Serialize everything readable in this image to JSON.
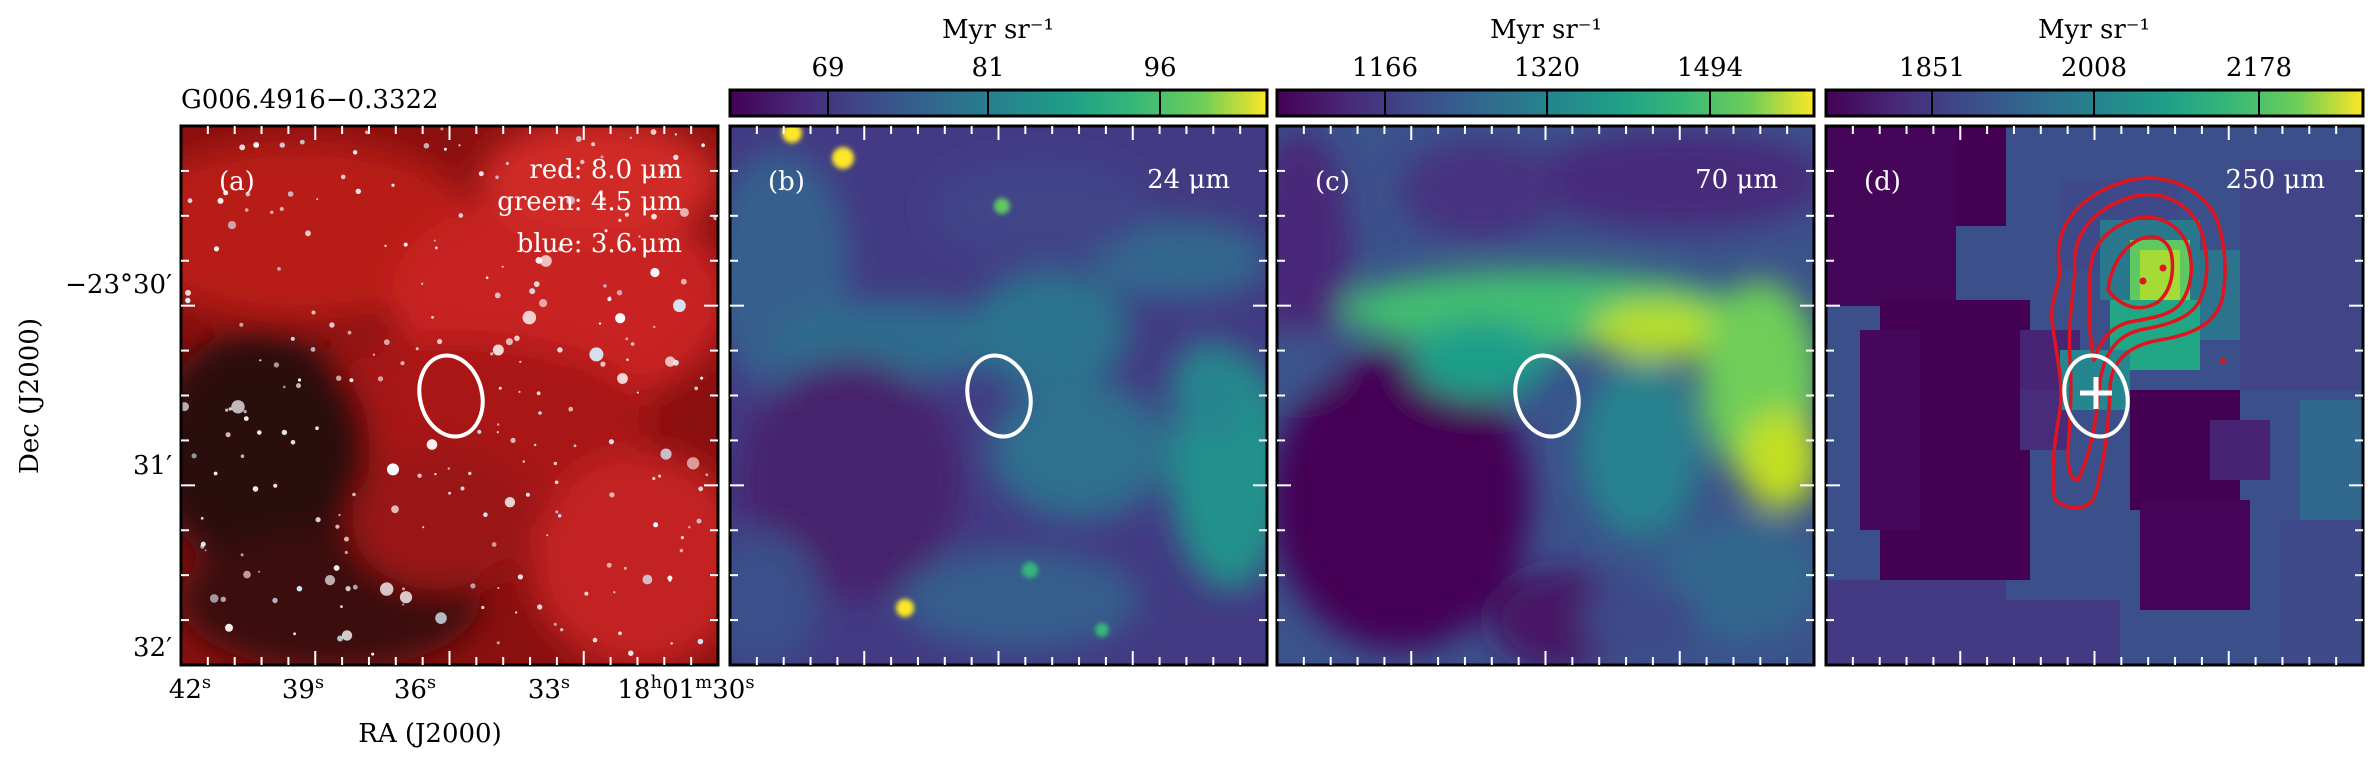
{
  "figure": {
    "source_name": "G006.4916−0.3322",
    "y_axis_label": "Dec (J2000)",
    "x_axis_label": "RA (J2000)",
    "dec_ticks": [
      "−23°30′",
      "31′",
      "32′"
    ],
    "ra_ticks": [
      {
        "label": "42",
        "sup": "s"
      },
      {
        "label": "39",
        "sup": "s"
      },
      {
        "label": "36",
        "sup": "s"
      },
      {
        "label": "33",
        "sup": "s"
      },
      {
        "label": "18h01m30s"
      }
    ],
    "colors": {
      "frame": "#000000",
      "ellipse": "#ffffff",
      "contour": "#e0141e",
      "cross": "#ffffff"
    }
  },
  "panels": [
    {
      "id": "a",
      "letter": "(a)",
      "legend": [
        "red: 8.0 μm",
        "green: 4.5 μm",
        "blue: 3.6 μm"
      ],
      "type": "rgb"
    },
    {
      "id": "b",
      "letter": "(b)",
      "wavelength": "24 μm",
      "colorbar": {
        "unit": "Myr sr⁻¹",
        "ticks": [
          "69",
          "81",
          "96"
        ]
      },
      "type": "viridis"
    },
    {
      "id": "c",
      "letter": "(c)",
      "wavelength": "70 μm",
      "colorbar": {
        "unit": "Myr sr⁻¹",
        "ticks": [
          "1166",
          "1320",
          "1494"
        ]
      },
      "type": "viridis"
    },
    {
      "id": "d",
      "letter": "(d)",
      "wavelength": "250 μm",
      "colorbar": {
        "unit": "Myr sr⁻¹",
        "ticks": [
          "1851",
          "2008",
          "2178"
        ]
      },
      "type": "viridis"
    }
  ]
}
